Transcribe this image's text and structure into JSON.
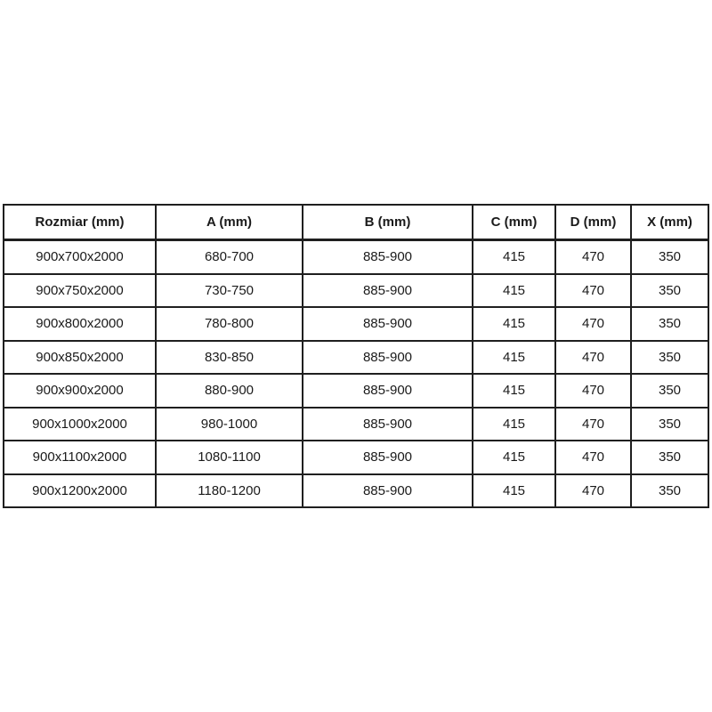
{
  "table": {
    "headers": [
      "Rozmiar (mm)",
      "A (mm)",
      "B (mm)",
      "C (mm)",
      "D (mm)",
      "X (mm)"
    ],
    "rows": [
      [
        "900x700x2000",
        "680-700",
        "885-900",
        "415",
        "470",
        "350"
      ],
      [
        "900x750x2000",
        "730-750",
        "885-900",
        "415",
        "470",
        "350"
      ],
      [
        "900x800x2000",
        "780-800",
        "885-900",
        "415",
        "470",
        "350"
      ],
      [
        "900x850x2000",
        "830-850",
        "885-900",
        "415",
        "470",
        "350"
      ],
      [
        "900x900x2000",
        "880-900",
        "885-900",
        "415",
        "470",
        "350"
      ],
      [
        "900x1000x2000",
        "980-1000",
        "885-900",
        "415",
        "470",
        "350"
      ],
      [
        "900x1100x2000",
        "1080-1100",
        "885-900",
        "415",
        "470",
        "350"
      ],
      [
        "900x1200x2000",
        "1180-1200",
        "885-900",
        "415",
        "470",
        "350"
      ]
    ]
  },
  "colors": {
    "border": "#1f1f1f",
    "text": "#1a1a1a",
    "background": "#ffffff"
  }
}
